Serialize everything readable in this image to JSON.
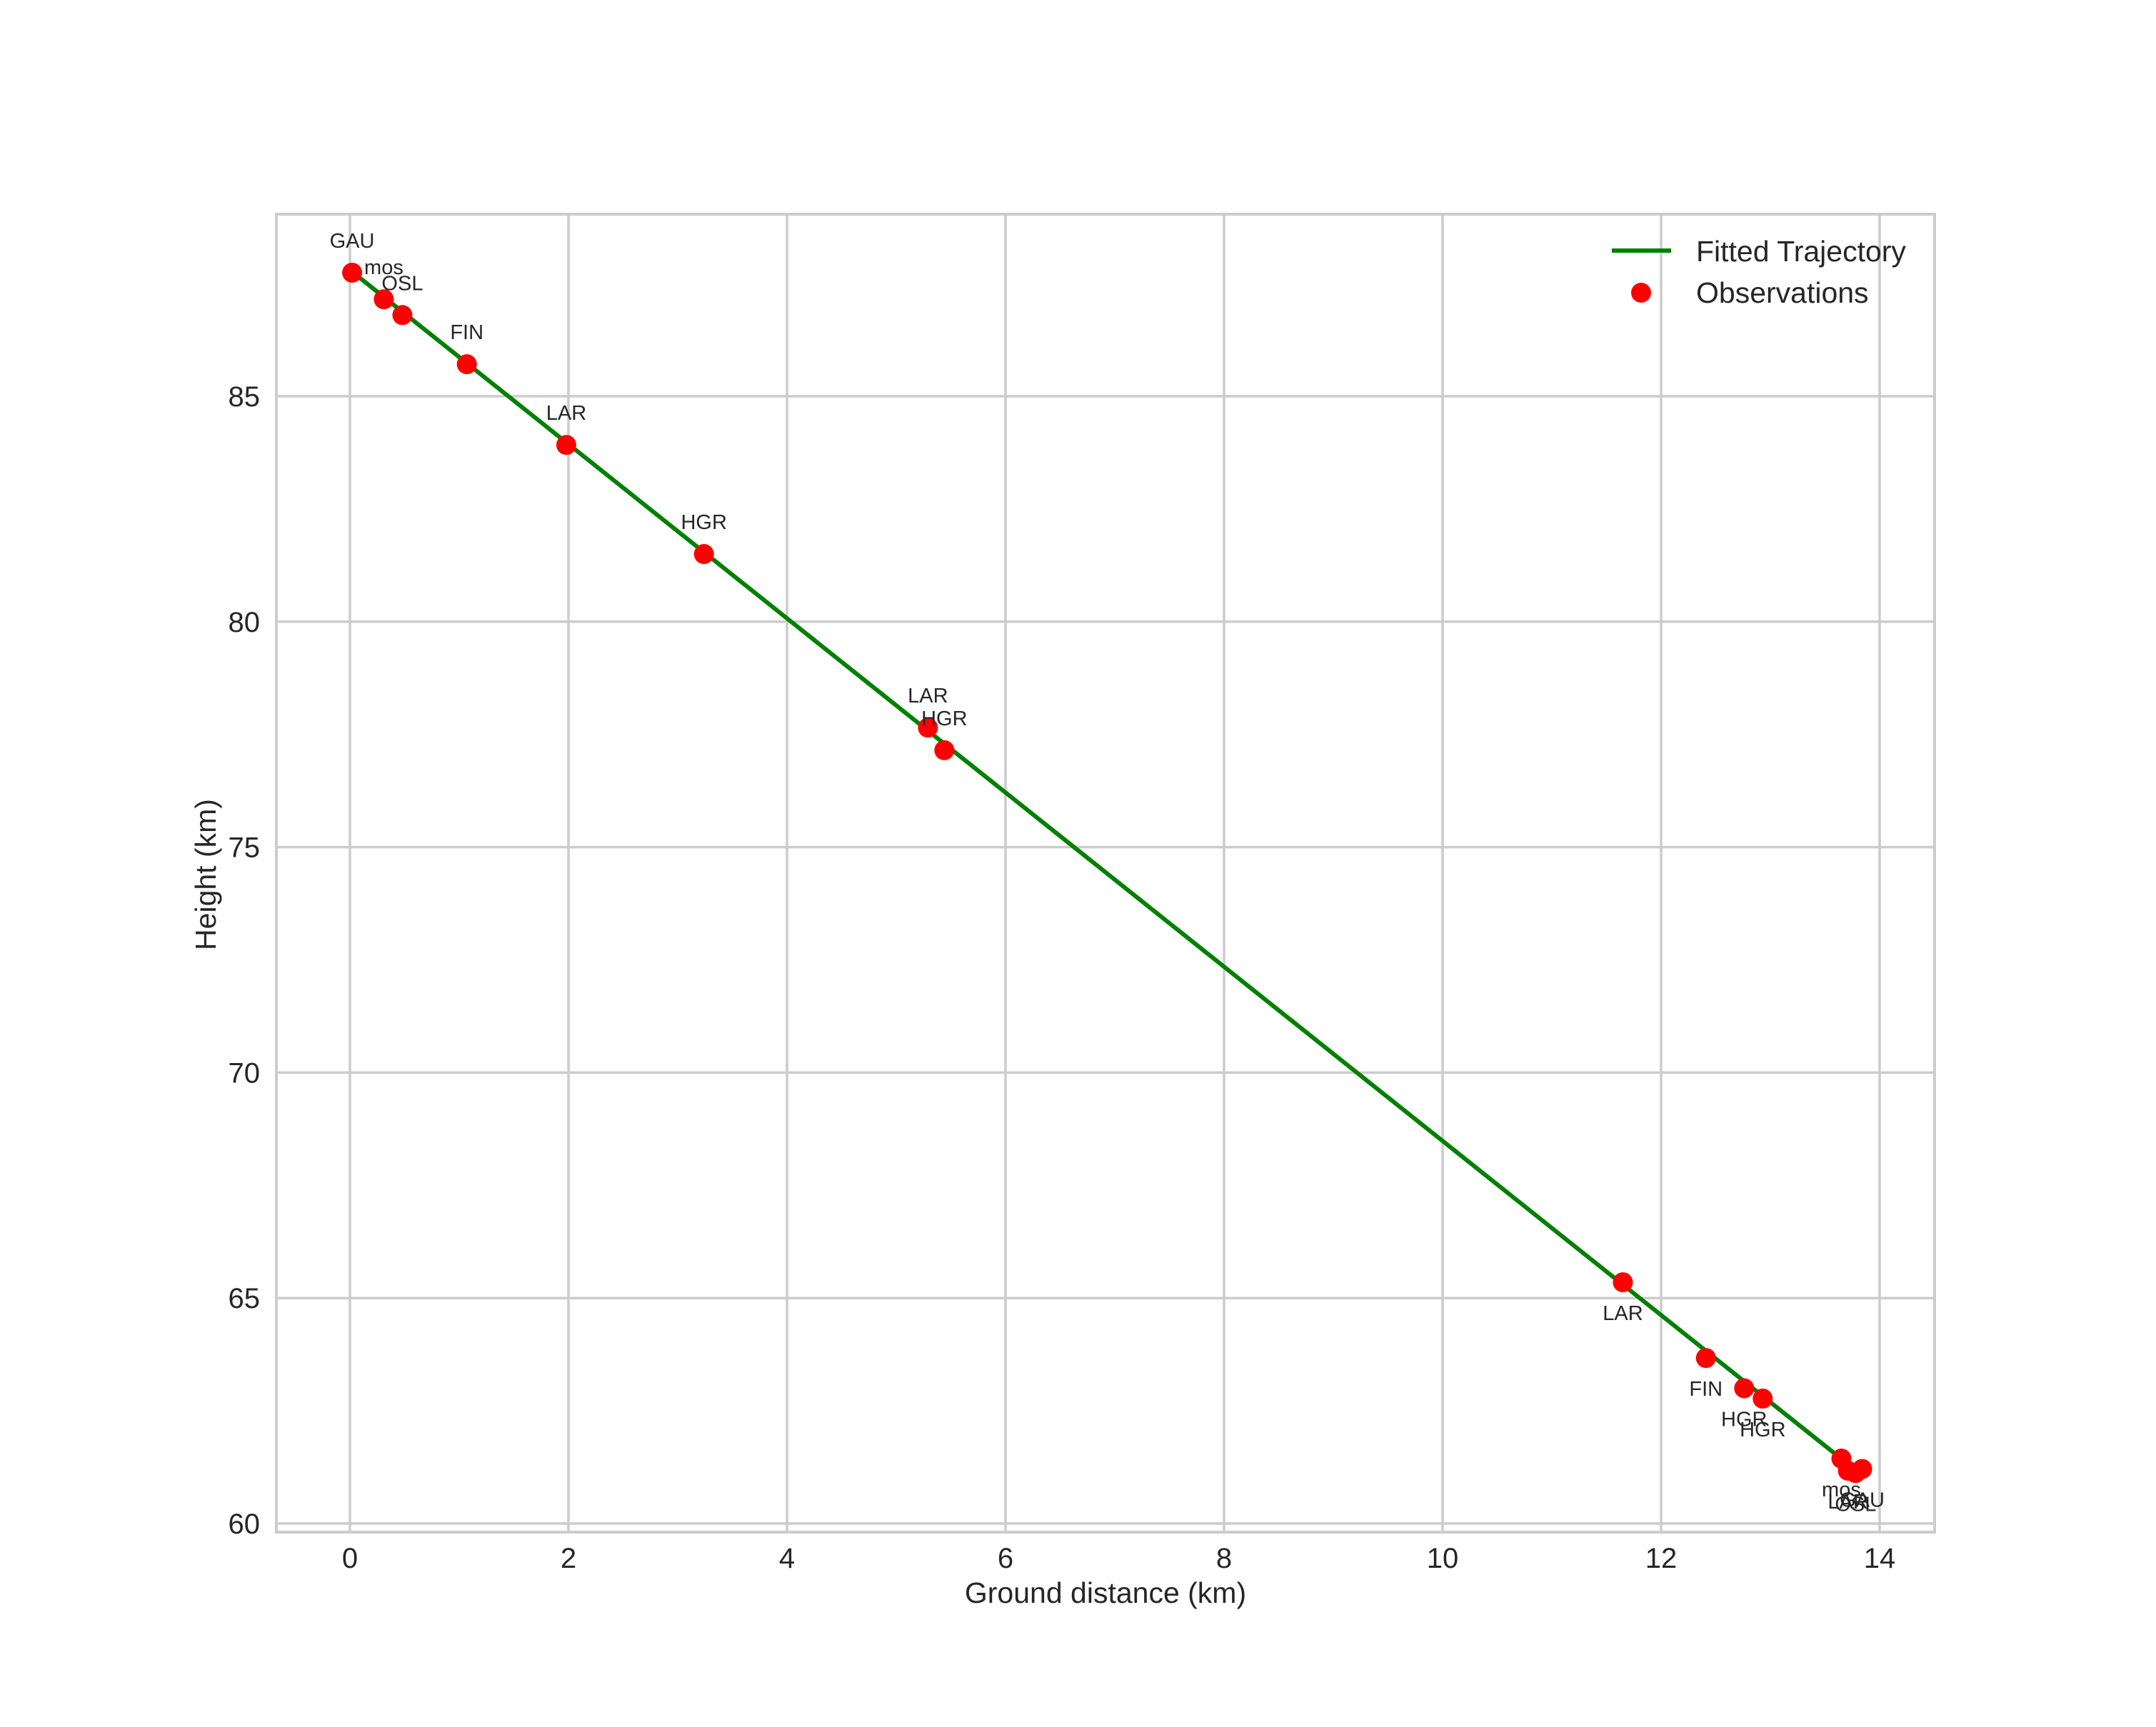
{
  "chart_data": {
    "type": "line",
    "title": "",
    "xlabel": "Ground distance (km)",
    "ylabel": "Height (km)",
    "xlim": [
      -0.7,
      14.5
    ],
    "ylim": [
      59.9,
      88.8
    ],
    "xticks": [
      0,
      2,
      4,
      6,
      8,
      10,
      12,
      14
    ],
    "yticks": [
      60,
      65,
      70,
      75,
      80,
      85
    ],
    "grid": true,
    "legend_position": "upper right",
    "colors": {
      "fitted": "#008000",
      "observations": "#ff0000",
      "grid": "#cccccc",
      "text": "#262626"
    },
    "series": [
      {
        "name": "Fitted Trajectory",
        "kind": "line",
        "x": [
          0.0,
          13.72
        ],
        "y": [
          87.8,
          61.3
        ]
      },
      {
        "name": "Observations",
        "kind": "scatter",
        "points": [
          {
            "label": "GAU",
            "x": 0.02,
            "y": 87.74,
            "label_pos": "above"
          },
          {
            "label": "mos",
            "x": 0.31,
            "y": 87.15,
            "label_pos": "above"
          },
          {
            "label": "OSL",
            "x": 0.48,
            "y": 86.8,
            "label_pos": "above"
          },
          {
            "label": "FIN",
            "x": 1.07,
            "y": 85.71,
            "label_pos": "above"
          },
          {
            "label": "LAR",
            "x": 1.98,
            "y": 83.92,
            "label_pos": "above"
          },
          {
            "label": "HGR",
            "x": 3.24,
            "y": 81.5,
            "label_pos": "above"
          },
          {
            "label": "LAR",
            "x": 5.29,
            "y": 77.65,
            "label_pos": "above"
          },
          {
            "label": "HGR",
            "x": 5.44,
            "y": 77.15,
            "label_pos": "above"
          },
          {
            "label": "LAR",
            "x": 11.65,
            "y": 65.35,
            "label_pos": "below"
          },
          {
            "label": "FIN",
            "x": 12.41,
            "y": 63.67,
            "label_pos": "below"
          },
          {
            "label": "HGR",
            "x": 12.76,
            "y": 63.0,
            "label_pos": "below"
          },
          {
            "label": "HGR",
            "x": 12.93,
            "y": 62.77,
            "label_pos": "below"
          },
          {
            "label": "mos",
            "x": 13.65,
            "y": 61.44,
            "label_pos": "below"
          },
          {
            "label": "LAR",
            "x": 13.71,
            "y": 61.17,
            "label_pos": "below"
          },
          {
            "label": "OSL",
            "x": 13.78,
            "y": 61.12,
            "label_pos": "below"
          },
          {
            "label": "GAU",
            "x": 13.84,
            "y": 61.21,
            "label_pos": "below"
          }
        ]
      }
    ],
    "legend": [
      {
        "label": "Fitted Trajectory",
        "marker": "line"
      },
      {
        "label": "Observations",
        "marker": "dot"
      }
    ]
  }
}
